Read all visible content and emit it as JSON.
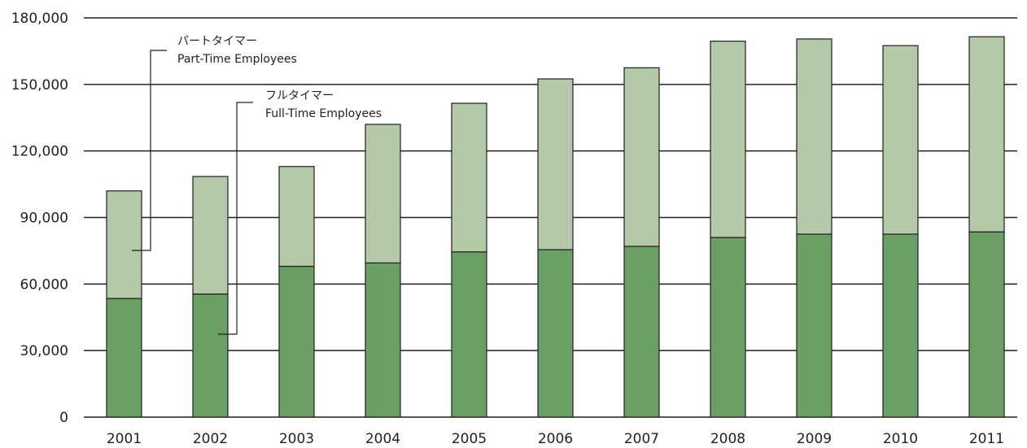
{
  "chart_data": {
    "type": "bar",
    "stacked": true,
    "categories": [
      "2001",
      "2002",
      "2003",
      "2004",
      "2005",
      "2006",
      "2007",
      "2008",
      "2009",
      "2010",
      "2011"
    ],
    "series": [
      {
        "name": "フルタイマー",
        "name_en": "Full-Time Employees",
        "color": "#6aa064",
        "values": [
          53500,
          55500,
          68000,
          69500,
          74500,
          75500,
          77000,
          81000,
          82500,
          82500,
          83500
        ]
      },
      {
        "name": "パートタイマー",
        "name_en": "Part-Time Employees",
        "color": "#b3c9a7",
        "values": [
          48500,
          53000,
          45000,
          62500,
          67000,
          77000,
          80500,
          88500,
          88000,
          85000,
          88000
        ]
      }
    ],
    "title": "",
    "xlabel": "",
    "ylabel": "",
    "ylim": [
      0,
      180000
    ],
    "yticks": [
      0,
      30000,
      60000,
      90000,
      120000,
      150000,
      180000
    ],
    "ytick_labels": [
      "0",
      "30,000",
      "60,000",
      "90,000",
      "120,000",
      "150,000",
      "180,000"
    ],
    "grid": true,
    "legend": "inline-annotations"
  }
}
